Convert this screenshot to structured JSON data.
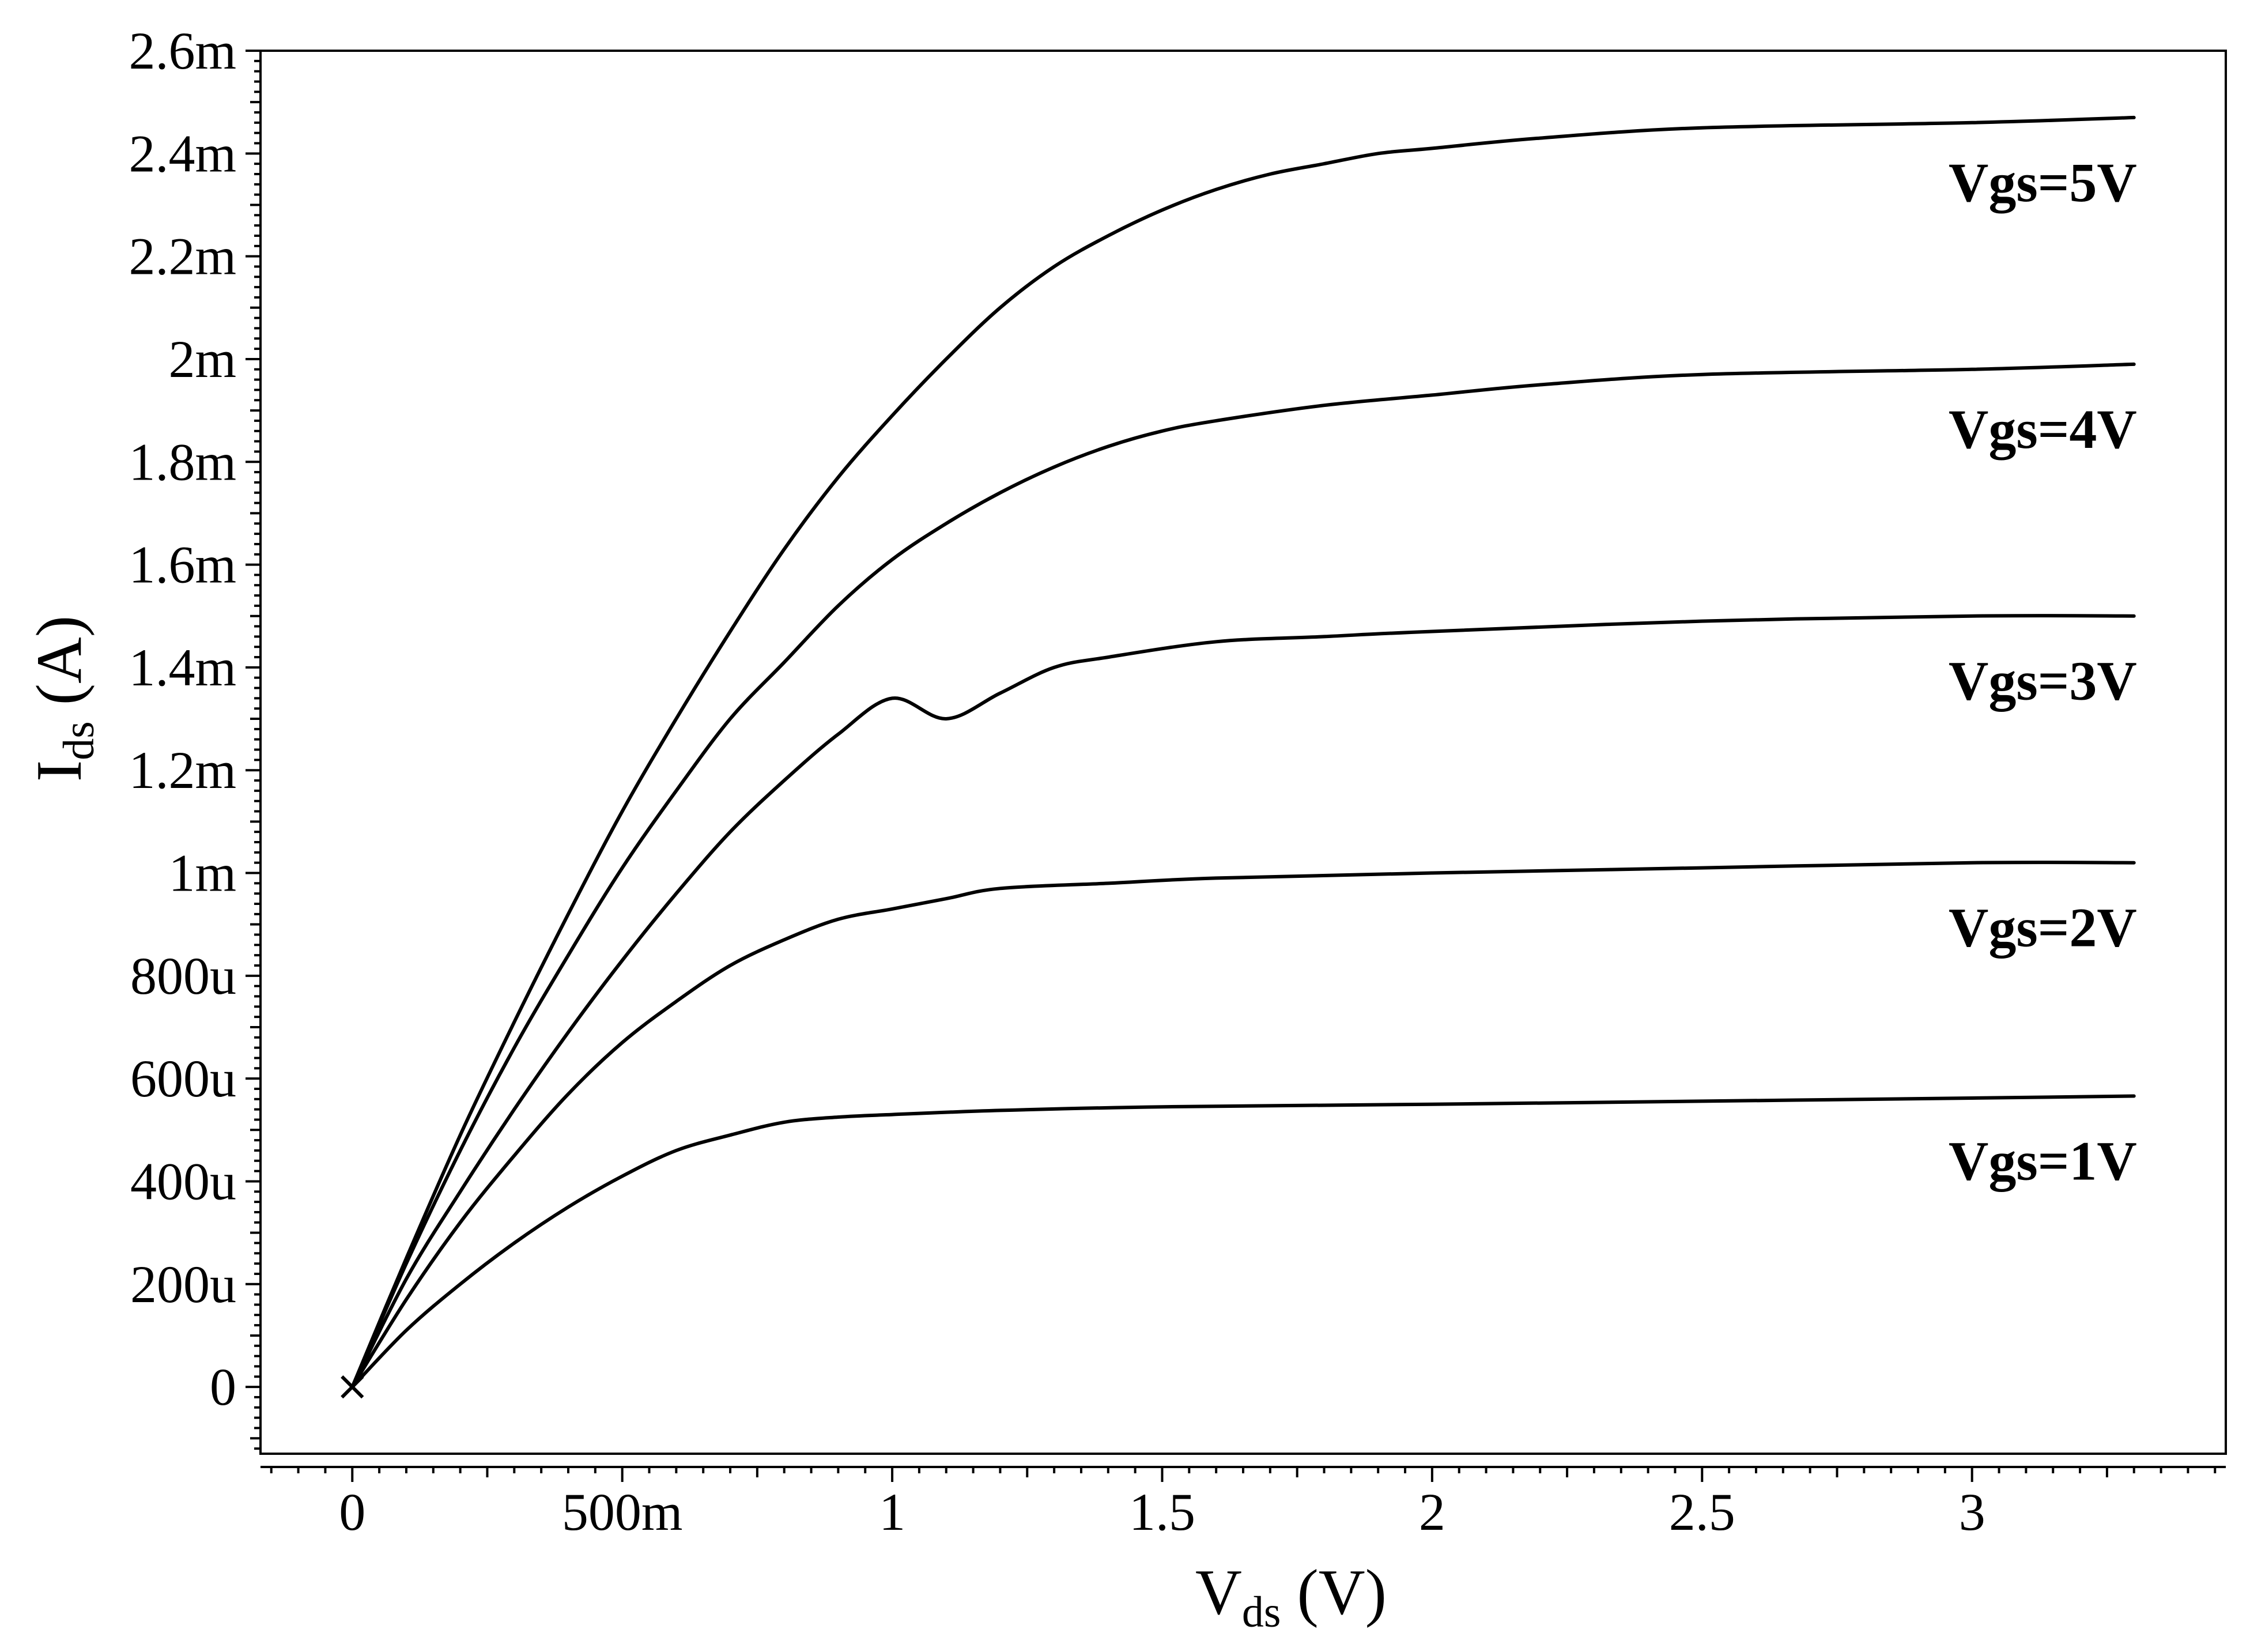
{
  "chart_data": {
    "type": "line",
    "xlabel": {
      "main": "V",
      "sub": "ds",
      "unit": " (V)"
    },
    "ylabel": {
      "main": "I",
      "sub": "ds",
      "unit": " (A)"
    },
    "xlim": [
      -0.17,
      3.47
    ],
    "ylim": [
      -0.00013,
      0.0026
    ],
    "x_ticks": [
      {
        "value": 0,
        "label": "0"
      },
      {
        "value": 0.5,
        "label": "500m"
      },
      {
        "value": 1,
        "label": "1"
      },
      {
        "value": 1.5,
        "label": "1.5"
      },
      {
        "value": 2,
        "label": "2"
      },
      {
        "value": 2.5,
        "label": "2.5"
      },
      {
        "value": 3,
        "label": "3"
      }
    ],
    "y_ticks": [
      {
        "value": 0,
        "label": "0"
      },
      {
        "value": 0.0002,
        "label": "200u"
      },
      {
        "value": 0.0004,
        "label": "400u"
      },
      {
        "value": 0.0006,
        "label": "600u"
      },
      {
        "value": 0.0008,
        "label": "800u"
      },
      {
        "value": 0.001,
        "label": "1m"
      },
      {
        "value": 0.0012,
        "label": "1.2m"
      },
      {
        "value": 0.0014,
        "label": "1.4m"
      },
      {
        "value": 0.0016,
        "label": "1.6m"
      },
      {
        "value": 0.0018,
        "label": "1.8m"
      },
      {
        "value": 0.002,
        "label": "2m"
      },
      {
        "value": 0.0022,
        "label": "2.2m"
      },
      {
        "value": 0.0024,
        "label": "2.4m"
      },
      {
        "value": 0.0026,
        "label": "2.6m"
      }
    ],
    "grid": false,
    "legend": "inline labels at right end of each curve",
    "line_color": "#000000",
    "origin_marker": {
      "x": 0,
      "y": 0,
      "symbol": "×"
    },
    "series": [
      {
        "name": "Vgs=1V",
        "x": [
          0,
          0.1,
          0.2,
          0.3,
          0.4,
          0.5,
          0.6,
          0.7,
          0.8,
          0.9,
          1.0,
          1.2,
          1.5,
          2.0,
          2.5,
          3.0,
          3.3
        ],
        "y": [
          0,
          0.00011,
          0.0002,
          0.00028,
          0.00035,
          0.00041,
          0.00046,
          0.00049,
          0.000515,
          0.000525,
          0.00053,
          0.000538,
          0.000545,
          0.00055,
          0.000556,
          0.000562,
          0.000566
        ]
      },
      {
        "name": "Vgs=2V",
        "x": [
          0,
          0.1,
          0.2,
          0.3,
          0.4,
          0.5,
          0.6,
          0.7,
          0.8,
          0.9,
          1.0,
          1.1,
          1.2,
          1.4,
          1.6,
          2.0,
          2.5,
          3.0,
          3.3
        ],
        "y": [
          0,
          0.00017,
          0.00032,
          0.00045,
          0.00057,
          0.00067,
          0.00075,
          0.00082,
          0.00087,
          0.00091,
          0.00093,
          0.00095,
          0.00097,
          0.00098,
          0.00099,
          0.001,
          0.00101,
          0.00102,
          0.00102
        ]
      },
      {
        "name": "Vgs=3V",
        "x": [
          0,
          0.1,
          0.2,
          0.3,
          0.4,
          0.5,
          0.6,
          0.7,
          0.8,
          0.9,
          1.0,
          1.1,
          1.2,
          1.3,
          1.4,
          1.6,
          1.8,
          2.0,
          2.5,
          3.0,
          3.3
        ],
        "y": [
          0,
          0.00021,
          0.00038,
          0.00054,
          0.00069,
          0.00083,
          0.00096,
          0.00108,
          0.00118,
          0.00127,
          0.00134,
          0.0013,
          0.00135,
          0.0014,
          0.00142,
          0.00145,
          0.00146,
          0.00147,
          0.00149,
          0.0015,
          0.0015
        ]
      },
      {
        "name": "Vgs=4V",
        "x": [
          0,
          0.1,
          0.2,
          0.3,
          0.4,
          0.5,
          0.6,
          0.7,
          0.8,
          0.9,
          1.0,
          1.1,
          1.2,
          1.3,
          1.4,
          1.5,
          1.6,
          1.8,
          2.0,
          2.2,
          2.5,
          3.0,
          3.3
        ],
        "y": [
          0,
          0.00024,
          0.00046,
          0.00066,
          0.00084,
          0.00101,
          0.00116,
          0.0013,
          0.00141,
          0.00152,
          0.00161,
          0.00168,
          0.00174,
          0.00179,
          0.00183,
          0.00186,
          0.00188,
          0.00191,
          0.00193,
          0.00195,
          0.00197,
          0.00198,
          0.00199
        ]
      },
      {
        "name": "Vgs=5V",
        "x": [
          0,
          0.1,
          0.2,
          0.3,
          0.4,
          0.5,
          0.6,
          0.7,
          0.8,
          0.9,
          1.0,
          1.1,
          1.2,
          1.3,
          1.4,
          1.5,
          1.6,
          1.7,
          1.8,
          1.9,
          2.0,
          2.2,
          2.5,
          3.0,
          3.3
        ],
        "y": [
          0,
          0.00025,
          0.00049,
          0.00071,
          0.00092,
          0.00112,
          0.0013,
          0.00147,
          0.00163,
          0.00177,
          0.00189,
          0.002,
          0.0021,
          0.00218,
          0.00224,
          0.00229,
          0.00233,
          0.00236,
          0.00238,
          0.0024,
          0.00241,
          0.00243,
          0.00245,
          0.00246,
          0.00247
        ]
      }
    ]
  }
}
